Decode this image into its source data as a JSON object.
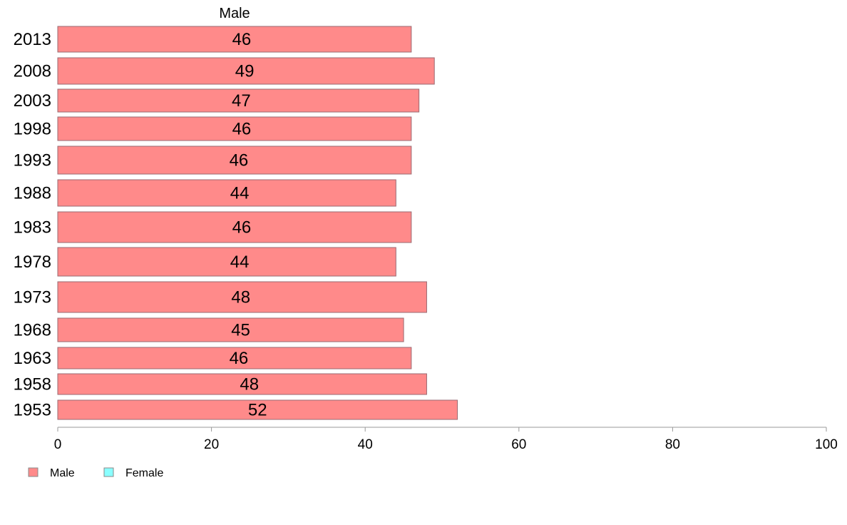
{
  "chart_data": {
    "type": "bar",
    "orientation": "horizontal",
    "title": "Male",
    "categories": [
      "2013",
      "2008",
      "2003",
      "1998",
      "1993",
      "1988",
      "1983",
      "1978",
      "1973",
      "1968",
      "1963",
      "1958",
      "1953"
    ],
    "series": [
      {
        "name": "Male",
        "color": "#ff8a8a",
        "values": [
          46,
          49,
          47,
          46,
          46,
          44,
          46,
          44,
          48,
          45,
          46,
          48,
          52
        ]
      }
    ],
    "xlim": [
      0,
      100
    ],
    "xticks": [
      0,
      20,
      40,
      60,
      80,
      100
    ],
    "grid": false,
    "legend": {
      "placement": "bottom-left",
      "entries": [
        {
          "label": "Male",
          "color": "#ff8a8a"
        },
        {
          "label": "Female",
          "color": "#8affff"
        }
      ]
    }
  }
}
